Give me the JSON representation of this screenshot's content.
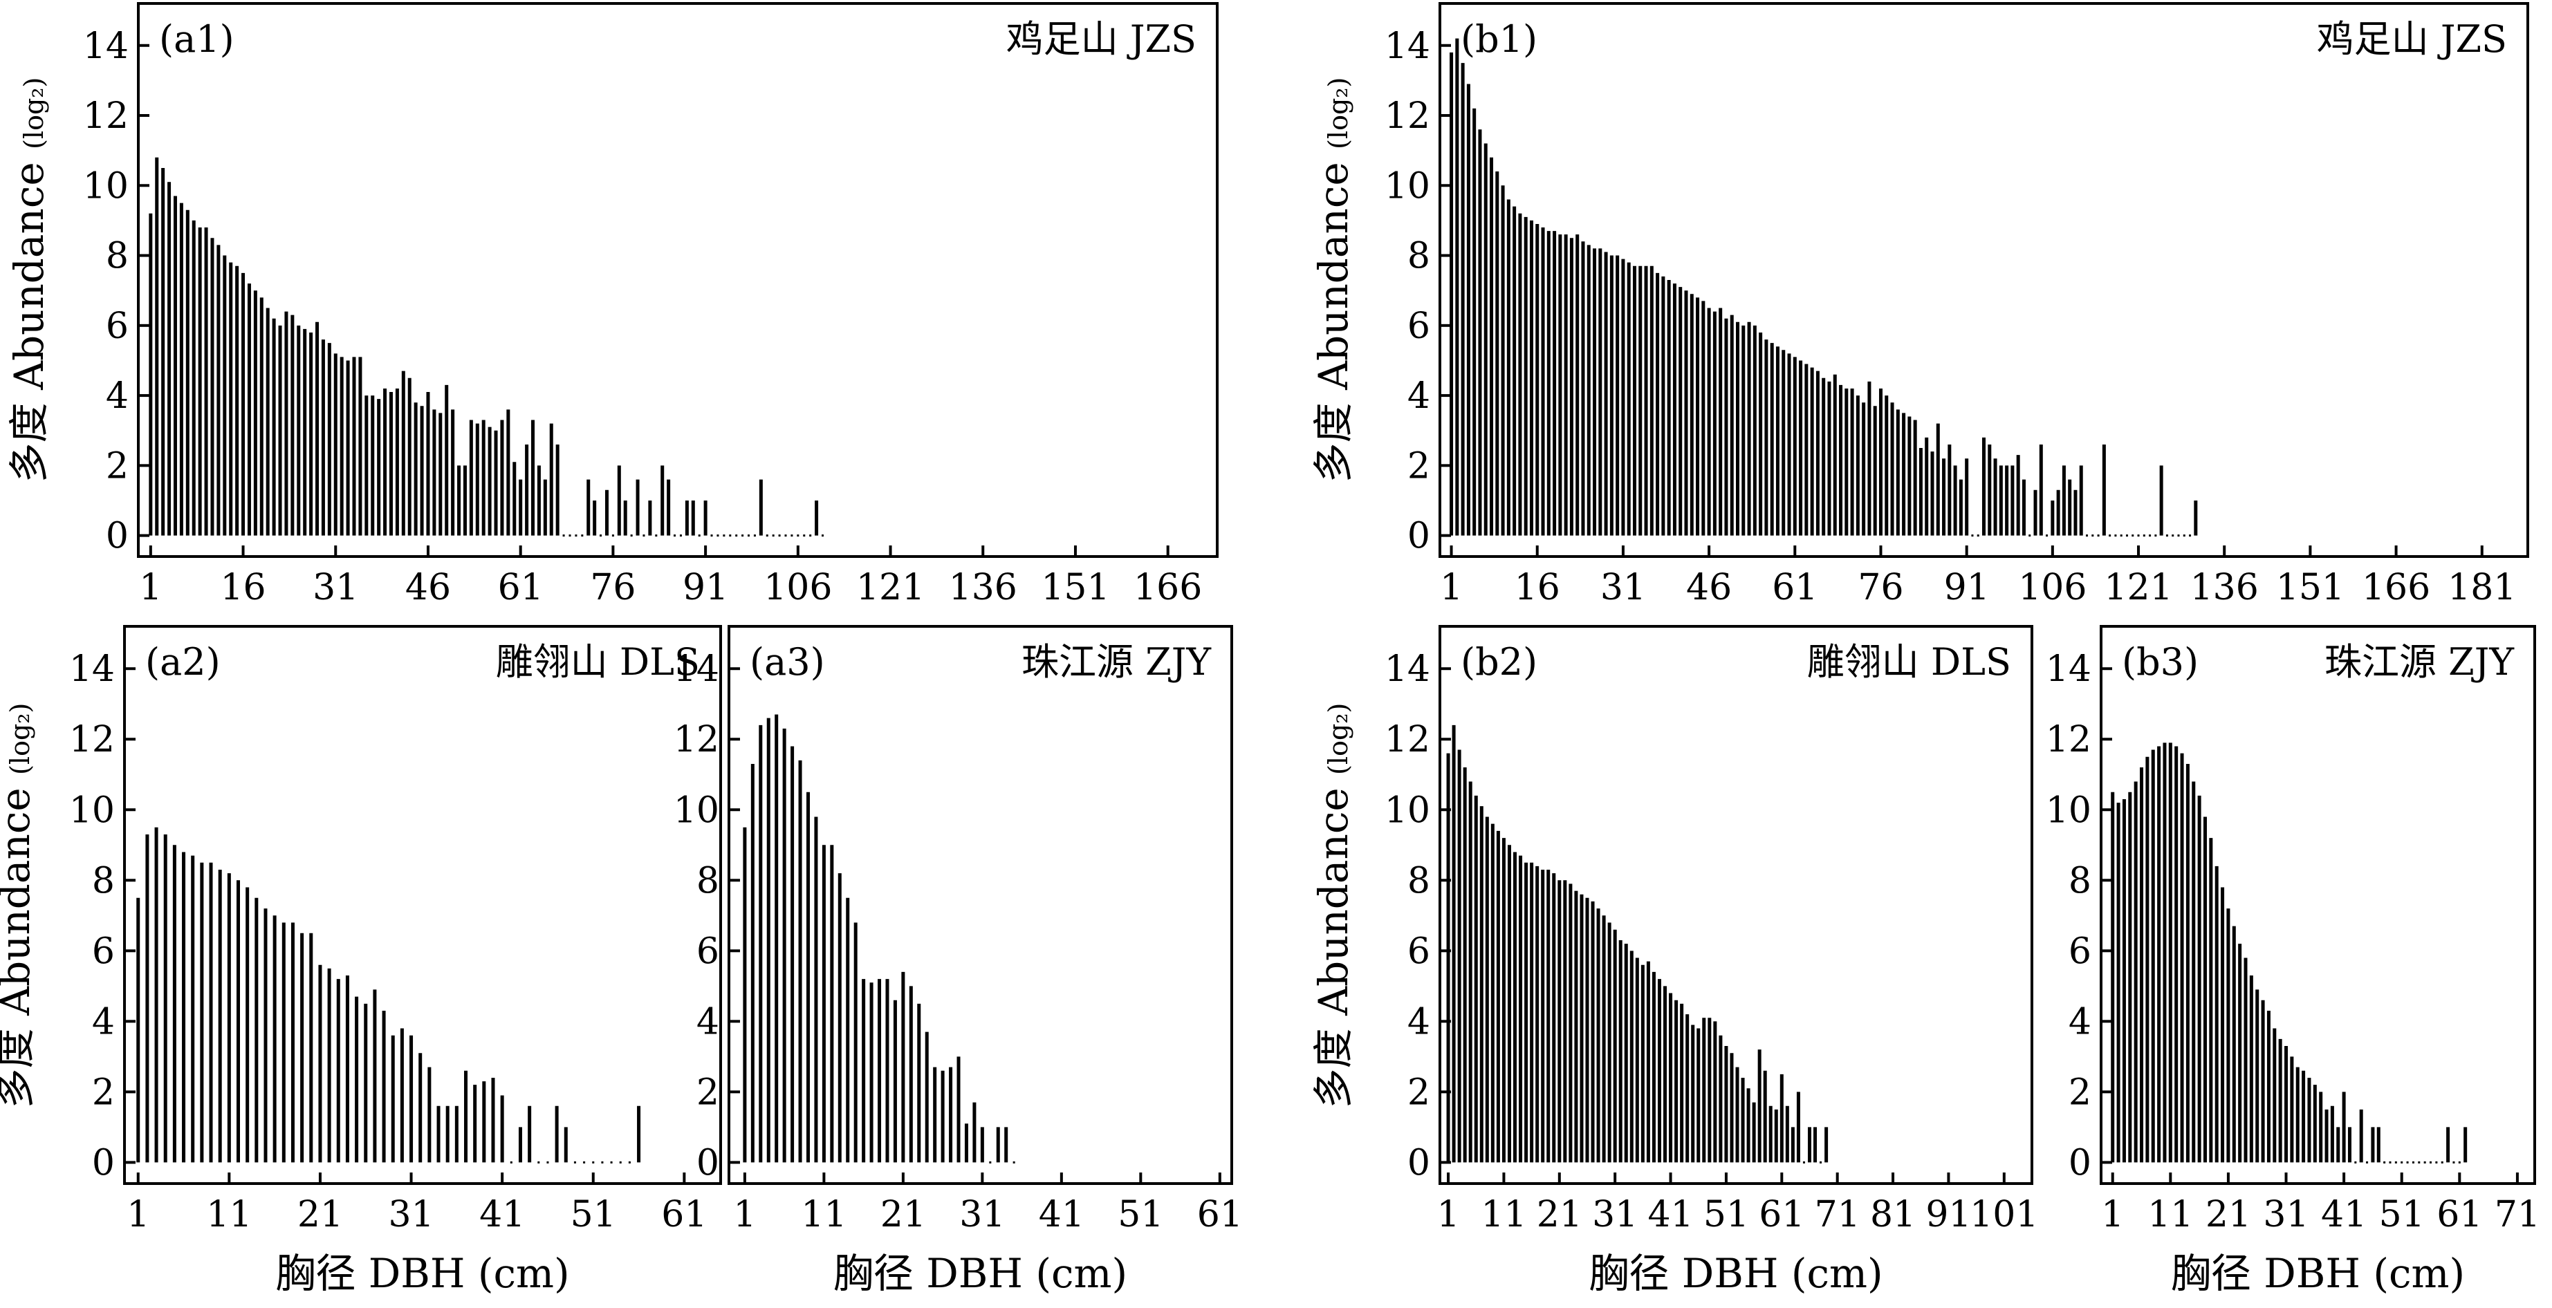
{
  "chart_data": [
    {
      "id": "a1",
      "type": "bar",
      "panel_label": "(a1)",
      "site_label": "鸡足山 JZS",
      "ylabel": "多度 Abundance",
      "ylabel_sub": "(log₂)",
      "xlabel": "",
      "xlim": [
        -1,
        174
      ],
      "ylim": [
        -0.6,
        15.2
      ],
      "x_ticks": [
        1,
        16,
        31,
        46,
        61,
        76,
        91,
        106,
        121,
        136,
        151,
        166
      ],
      "y_ticks": [
        0,
        2,
        4,
        6,
        8,
        10,
        12,
        14
      ],
      "x": [
        1,
        2,
        3,
        4,
        5,
        6,
        7,
        8,
        9,
        10,
        11,
        12,
        13,
        14,
        15,
        16,
        17,
        18,
        19,
        20,
        21,
        22,
        23,
        24,
        25,
        26,
        27,
        28,
        29,
        30,
        31,
        32,
        33,
        34,
        35,
        36,
        37,
        38,
        39,
        40,
        41,
        42,
        43,
        44,
        45,
        46,
        47,
        48,
        49,
        50,
        51,
        52,
        53,
        54,
        55,
        56,
        57,
        58,
        59,
        60,
        61,
        62,
        63,
        64,
        65,
        66,
        67,
        68,
        69,
        70,
        71,
        72,
        73,
        74,
        75,
        76,
        77,
        78,
        79,
        80,
        81,
        82,
        83,
        84,
        85,
        86,
        87,
        88,
        89,
        90,
        91,
        92,
        93,
        94,
        95,
        96,
        97,
        98,
        99,
        100,
        101,
        102,
        103,
        104,
        105,
        106,
        107,
        108,
        109,
        110
      ],
      "values": [
        9.2,
        10.8,
        10.5,
        10.1,
        9.7,
        9.5,
        9.3,
        9.0,
        8.8,
        8.8,
        8.5,
        8.3,
        8.0,
        7.8,
        7.7,
        7.5,
        7.2,
        7.0,
        6.8,
        6.5,
        6.2,
        6.0,
        6.4,
        6.3,
        6.0,
        5.9,
        5.8,
        6.1,
        5.6,
        5.5,
        5.2,
        5.1,
        5.0,
        5.1,
        5.1,
        4.0,
        4.0,
        3.9,
        4.2,
        4.1,
        4.2,
        4.7,
        4.5,
        3.8,
        3.7,
        4.1,
        3.6,
        3.5,
        4.3,
        3.6,
        2.0,
        2.0,
        3.3,
        3.2,
        3.3,
        3.1,
        3.0,
        3.3,
        3.6,
        2.1,
        1.6,
        2.6,
        3.3,
        2.0,
        1.6,
        3.2,
        2.6,
        0,
        0,
        0,
        0,
        1.6,
        1.0,
        0,
        1.3,
        0,
        2.0,
        1.0,
        0,
        1.6,
        0,
        1.0,
        0,
        2.0,
        1.6,
        0,
        0,
        1.0,
        1.0,
        0,
        1.0,
        0,
        0,
        0,
        0,
        0,
        0,
        0,
        0,
        1.6,
        0,
        0,
        0,
        0,
        0,
        0,
        0,
        0,
        1.0,
        0
      ]
    },
    {
      "id": "b1",
      "type": "bar",
      "panel_label": "(b1)",
      "site_label": "鸡足山 JZS",
      "ylabel": "多度 Abundance",
      "ylabel_sub": "(log₂)",
      "xlabel": "",
      "xlim": [
        -1,
        189
      ],
      "ylim": [
        -0.6,
        15.2
      ],
      "x_ticks": [
        1,
        16,
        31,
        46,
        61,
        76,
        91,
        106,
        121,
        136,
        151,
        166,
        181
      ],
      "y_ticks": [
        0,
        2,
        4,
        6,
        8,
        10,
        12,
        14
      ],
      "x": [
        1,
        2,
        3,
        4,
        5,
        6,
        7,
        8,
        9,
        10,
        11,
        12,
        13,
        14,
        15,
        16,
        17,
        18,
        19,
        20,
        21,
        22,
        23,
        24,
        25,
        26,
        27,
        28,
        29,
        30,
        31,
        32,
        33,
        34,
        35,
        36,
        37,
        38,
        39,
        40,
        41,
        42,
        43,
        44,
        45,
        46,
        47,
        48,
        49,
        50,
        51,
        52,
        53,
        54,
        55,
        56,
        57,
        58,
        59,
        60,
        61,
        62,
        63,
        64,
        65,
        66,
        67,
        68,
        69,
        70,
        71,
        72,
        73,
        74,
        75,
        76,
        77,
        78,
        79,
        80,
        81,
        82,
        83,
        84,
        85,
        86,
        87,
        88,
        89,
        90,
        91,
        92,
        93,
        94,
        95,
        96,
        97,
        98,
        99,
        100,
        101,
        102,
        103,
        104,
        105,
        106,
        107,
        108,
        109,
        110,
        111,
        112,
        113,
        114,
        115,
        116,
        117,
        118,
        119,
        120,
        121,
        122,
        123,
        124,
        125,
        126,
        127,
        128,
        129,
        130,
        131
      ],
      "values": [
        13.8,
        14.2,
        13.5,
        12.9,
        12.2,
        11.6,
        11.2,
        10.8,
        10.4,
        10.0,
        9.6,
        9.4,
        9.2,
        9.1,
        9.0,
        8.9,
        8.8,
        8.7,
        8.7,
        8.6,
        8.6,
        8.5,
        8.6,
        8.4,
        8.3,
        8.2,
        8.2,
        8.1,
        8.0,
        8.0,
        7.9,
        7.8,
        7.7,
        7.7,
        7.7,
        7.7,
        7.5,
        7.4,
        7.3,
        7.2,
        7.1,
        7.0,
        6.9,
        6.8,
        6.7,
        6.5,
        6.4,
        6.5,
        6.2,
        6.3,
        6.1,
        6.0,
        6.1,
        6.0,
        5.8,
        5.6,
        5.5,
        5.4,
        5.3,
        5.2,
        5.1,
        5.0,
        4.9,
        4.8,
        4.7,
        4.5,
        4.4,
        4.6,
        4.3,
        4.2,
        4.2,
        4.0,
        3.8,
        4.4,
        3.7,
        4.2,
        4.0,
        3.8,
        3.6,
        3.5,
        3.4,
        3.3,
        2.5,
        2.8,
        2.4,
        3.2,
        2.2,
        2.6,
        2.0,
        1.6,
        2.2,
        0,
        0,
        2.8,
        2.6,
        2.2,
        2.0,
        2.0,
        2.0,
        2.3,
        1.6,
        0,
        1.3,
        2.6,
        0,
        1.0,
        1.3,
        2.0,
        1.6,
        1.3,
        2.0,
        0,
        0,
        0,
        2.6,
        0,
        0,
        0,
        0,
        0,
        0,
        0,
        0,
        0,
        2.0,
        0,
        0,
        0,
        0,
        0,
        1.0
      ]
    },
    {
      "id": "a2",
      "type": "bar",
      "panel_label": "(a2)",
      "site_label": "雕翎山 DLS",
      "ylabel": "多度 Abundance",
      "ylabel_sub": "(log₂)",
      "xlabel": "胸径 DBH (cm)",
      "xlim": [
        -0.5,
        65
      ],
      "ylim": [
        -0.6,
        15.2
      ],
      "x_ticks": [
        1,
        11,
        21,
        31,
        41,
        51,
        61
      ],
      "y_ticks": [
        0,
        2,
        4,
        6,
        8,
        10,
        12,
        14
      ],
      "x": [
        1,
        2,
        3,
        4,
        5,
        6,
        7,
        8,
        9,
        10,
        11,
        12,
        13,
        14,
        15,
        16,
        17,
        18,
        19,
        20,
        21,
        22,
        23,
        24,
        25,
        26,
        27,
        28,
        29,
        30,
        31,
        32,
        33,
        34,
        35,
        36,
        37,
        38,
        39,
        40,
        41,
        42,
        43,
        44,
        45,
        46,
        47,
        48,
        49,
        50,
        51,
        52,
        53,
        54,
        55,
        56
      ],
      "values": [
        7.5,
        9.3,
        9.5,
        9.3,
        9.0,
        8.8,
        8.7,
        8.5,
        8.5,
        8.3,
        8.2,
        8.0,
        7.8,
        7.5,
        7.2,
        7.0,
        6.8,
        6.8,
        6.5,
        6.5,
        5.6,
        5.5,
        5.2,
        5.3,
        4.7,
        4.5,
        4.9,
        4.3,
        3.6,
        3.8,
        3.6,
        3.1,
        2.7,
        1.6,
        1.6,
        1.6,
        2.6,
        2.2,
        2.3,
        2.4,
        1.9,
        0,
        1.0,
        1.6,
        0,
        0,
        1.6,
        1.0,
        0,
        0,
        0,
        0,
        0,
        0,
        0,
        1.6
      ]
    },
    {
      "id": "a3",
      "type": "bar",
      "panel_label": "(a3)",
      "site_label": "珠江源 ZJY",
      "ylabel": "",
      "ylabel_sub": "",
      "xlabel": "胸径 DBH (cm)",
      "xlim": [
        -1,
        62.5
      ],
      "ylim": [
        -0.6,
        15.2
      ],
      "x_ticks": [
        1,
        11,
        21,
        31,
        41,
        51,
        61
      ],
      "y_ticks": [
        0,
        2,
        4,
        6,
        8,
        10,
        12,
        14
      ],
      "x": [
        1,
        2,
        3,
        4,
        5,
        6,
        7,
        8,
        9,
        10,
        11,
        12,
        13,
        14,
        15,
        16,
        17,
        18,
        19,
        20,
        21,
        22,
        23,
        24,
        25,
        26,
        27,
        28,
        29,
        30,
        31,
        32,
        33,
        34,
        35
      ],
      "values": [
        9.5,
        11.3,
        12.4,
        12.6,
        12.7,
        12.3,
        11.8,
        11.4,
        10.5,
        9.8,
        9.0,
        9.0,
        8.2,
        7.5,
        6.8,
        5.2,
        5.1,
        5.2,
        5.2,
        4.6,
        5.4,
        5.0,
        4.5,
        3.7,
        2.7,
        2.6,
        2.7,
        3.0,
        1.1,
        1.7,
        1.0,
        0,
        1.0,
        1.0,
        0
      ]
    },
    {
      "id": "b2",
      "type": "bar",
      "panel_label": "(b2)",
      "site_label": "雕翎山 DLS",
      "ylabel": "多度 Abundance",
      "ylabel_sub": "(log₂)",
      "xlabel": "胸径 DBH (cm)",
      "xlim": [
        -0.5,
        106
      ],
      "ylim": [
        -0.6,
        15.2
      ],
      "x_ticks": [
        1,
        11,
        21,
        31,
        41,
        51,
        61,
        71,
        81,
        91,
        101
      ],
      "x_tick_labels": [
        "1",
        "11",
        "21",
        "31",
        "41",
        "51",
        "61",
        "71",
        "81",
        "91",
        "101"
      ],
      "y_ticks": [
        0,
        2,
        4,
        6,
        8,
        10,
        12,
        14
      ],
      "x": [
        1,
        2,
        3,
        4,
        5,
        6,
        7,
        8,
        9,
        10,
        11,
        12,
        13,
        14,
        15,
        16,
        17,
        18,
        19,
        20,
        21,
        22,
        23,
        24,
        25,
        26,
        27,
        28,
        29,
        30,
        31,
        32,
        33,
        34,
        35,
        36,
        37,
        38,
        39,
        40,
        41,
        42,
        43,
        44,
        45,
        46,
        47,
        48,
        49,
        50,
        51,
        52,
        53,
        54,
        55,
        56,
        57,
        58,
        59,
        60,
        61,
        62,
        63,
        64,
        65,
        66,
        67,
        68,
        69
      ],
      "values": [
        11.6,
        12.4,
        11.7,
        11.2,
        10.8,
        10.4,
        10.1,
        9.8,
        9.6,
        9.4,
        9.2,
        9.0,
        8.8,
        8.7,
        8.5,
        8.5,
        8.4,
        8.3,
        8.3,
        8.2,
        8.0,
        8.0,
        7.9,
        7.7,
        7.6,
        7.5,
        7.4,
        7.2,
        7.0,
        6.8,
        6.6,
        6.3,
        6.2,
        6.0,
        5.8,
        5.6,
        5.7,
        5.4,
        5.2,
        5.0,
        4.8,
        4.6,
        4.5,
        4.2,
        3.9,
        3.8,
        4.1,
        4.1,
        4.0,
        3.6,
        3.3,
        3.1,
        2.7,
        2.4,
        2.1,
        1.7,
        3.2,
        2.6,
        1.6,
        1.5,
        2.5,
        1.6,
        1.0,
        2.0,
        0,
        1.0,
        1.0,
        0,
        1.0
      ]
    },
    {
      "id": "b3",
      "type": "bar",
      "panel_label": "(b3)",
      "site_label": "珠江源 ZJY",
      "ylabel": "",
      "ylabel_sub": "",
      "xlabel": "胸径 DBH (cm)",
      "xlim": [
        -1,
        74
      ],
      "ylim": [
        -0.6,
        15.2
      ],
      "x_ticks": [
        1,
        11,
        21,
        31,
        41,
        51,
        61,
        71
      ],
      "y_ticks": [
        0,
        2,
        4,
        6,
        8,
        10,
        12,
        14
      ],
      "x": [
        1,
        2,
        3,
        4,
        5,
        6,
        7,
        8,
        9,
        10,
        11,
        12,
        13,
        14,
        15,
        16,
        17,
        18,
        19,
        20,
        21,
        22,
        23,
        24,
        25,
        26,
        27,
        28,
        29,
        30,
        31,
        32,
        33,
        34,
        35,
        36,
        37,
        38,
        39,
        40,
        41,
        42,
        43,
        44,
        45,
        46,
        47,
        48,
        49,
        50,
        51,
        52,
        53,
        54,
        55,
        56,
        57,
        58,
        59,
        60,
        61,
        62
      ],
      "values": [
        10.5,
        10.2,
        10.3,
        10.5,
        10.8,
        11.2,
        11.5,
        11.7,
        11.8,
        11.9,
        11.9,
        11.8,
        11.6,
        11.3,
        10.8,
        10.4,
        9.8,
        9.2,
        8.4,
        7.8,
        7.2,
        6.7,
        6.2,
        5.8,
        5.3,
        4.9,
        4.6,
        4.3,
        3.8,
        3.5,
        3.3,
        3.0,
        2.7,
        2.6,
        2.4,
        2.2,
        2.0,
        1.5,
        1.6,
        1.0,
        2.0,
        1.0,
        0,
        1.5,
        0,
        1.0,
        1.0,
        0,
        0,
        0,
        0,
        0,
        0,
        0,
        0,
        0,
        0,
        0,
        1.0,
        0,
        0,
        1.0
      ]
    }
  ]
}
